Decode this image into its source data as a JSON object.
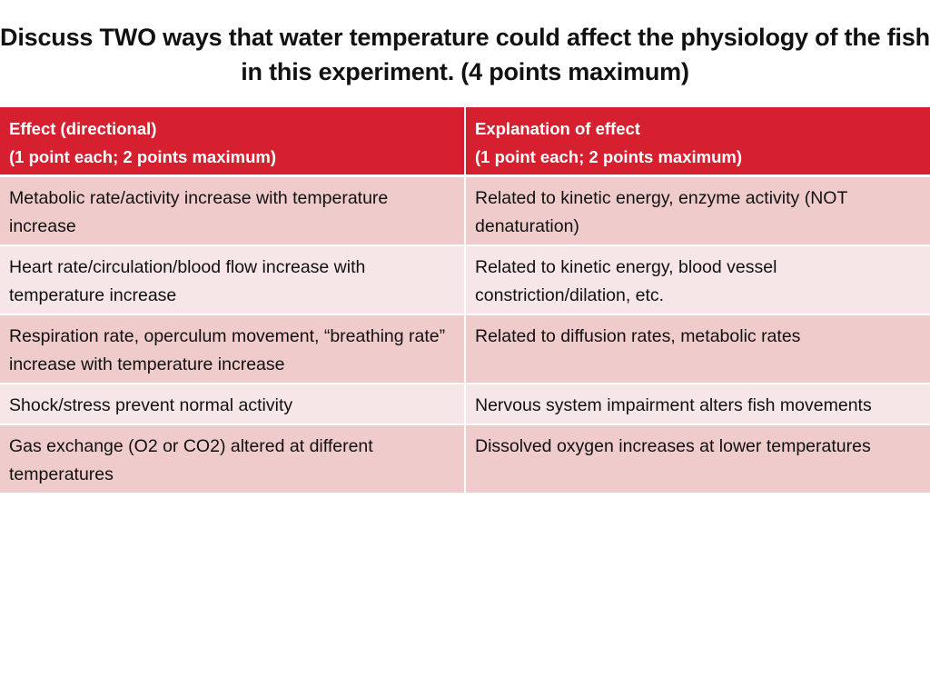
{
  "title": "Discuss TWO ways that water temperature could affect the physiology of the fish in this experiment. (4 points maximum)",
  "table": {
    "headers": [
      {
        "line1": "Effect (directional)",
        "line2": "(1 point each; 2 points maximum)"
      },
      {
        "line1": "Explanation of effect",
        "line2": "(1 point each; 2 points maximum)"
      }
    ],
    "rows": [
      {
        "effect": "Metabolic rate/activity increase with temperature increase",
        "explanation": "Related to kinetic energy, enzyme activity (NOT denaturation)"
      },
      {
        "effect": "Heart rate/circulation/blood flow increase with temperature increase",
        "explanation": "Related to kinetic energy, blood vessel constriction/dilation, etc."
      },
      {
        "effect": "Respiration rate, operculum movement, “breathing rate” increase with temperature increase",
        "explanation": "Related to diffusion rates, metabolic rates"
      },
      {
        "effect": "Shock/stress prevent normal activity",
        "explanation": "Nervous system impairment alters fish movements"
      },
      {
        "effect": "Gas exchange (O2 or CO2) altered at different temperatures",
        "explanation": "Dissolved oxygen increases at lower temperatures"
      }
    ]
  },
  "colors": {
    "header_bg": "#d62030",
    "row_dark": "#efcbcc",
    "row_light": "#f7e6e7"
  }
}
